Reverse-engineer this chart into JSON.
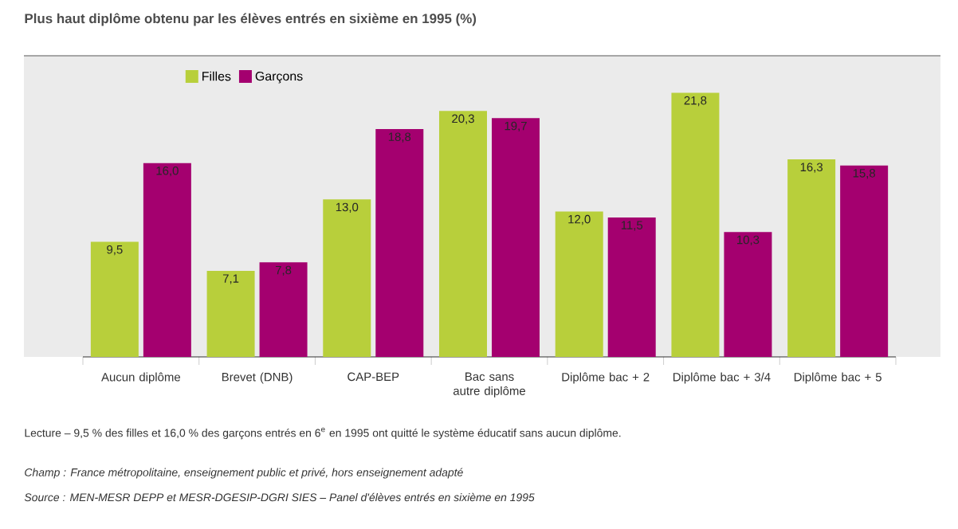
{
  "chart_data": {
    "type": "bar",
    "title": "Plus haut diplôme obtenu par les élèves entrés en sixième en 1995 (%)",
    "categories": [
      "Aucun diplôme",
      "Brevet (DNB)",
      "CAP-BEP",
      "Bac sans autre diplôme",
      "Diplôme bac + 2",
      "Diplôme bac + 3/4",
      "Diplôme bac + 5"
    ],
    "series": [
      {
        "name": "Filles",
        "color": "#b8cf3b",
        "values": [
          9.5,
          7.1,
          13.0,
          20.3,
          12.0,
          21.8,
          16.3
        ],
        "value_labels": [
          "9,5",
          "7,1",
          "13,0",
          "20,3",
          "12,0",
          "21,8",
          "16,3"
        ]
      },
      {
        "name": "Garçons",
        "color": "#a4006f",
        "values": [
          16.0,
          7.8,
          18.8,
          19.7,
          11.5,
          10.3,
          15.8
        ],
        "value_labels": [
          "16,0",
          "7,8",
          "18,8",
          "19,7",
          "11,5",
          "10,3",
          "15,8"
        ]
      }
    ],
    "legend": "top left",
    "annotations": [
      "Lecture – 9,5 % des filles et 16,0 % des garçons entrés en 6$^{e}$ en 1995 ont quitté le système éducatif sans aucun diplôme.",
      "*Champ : France métropolitaine, enseignement public et privé, hors enseignement adapté*",
      "*Source : MEN-MESR DEPP et MESR-DGESIP-DGRI SIES – Panel d'élèves entrés en sixième en 1995*"
    ]
  }
}
